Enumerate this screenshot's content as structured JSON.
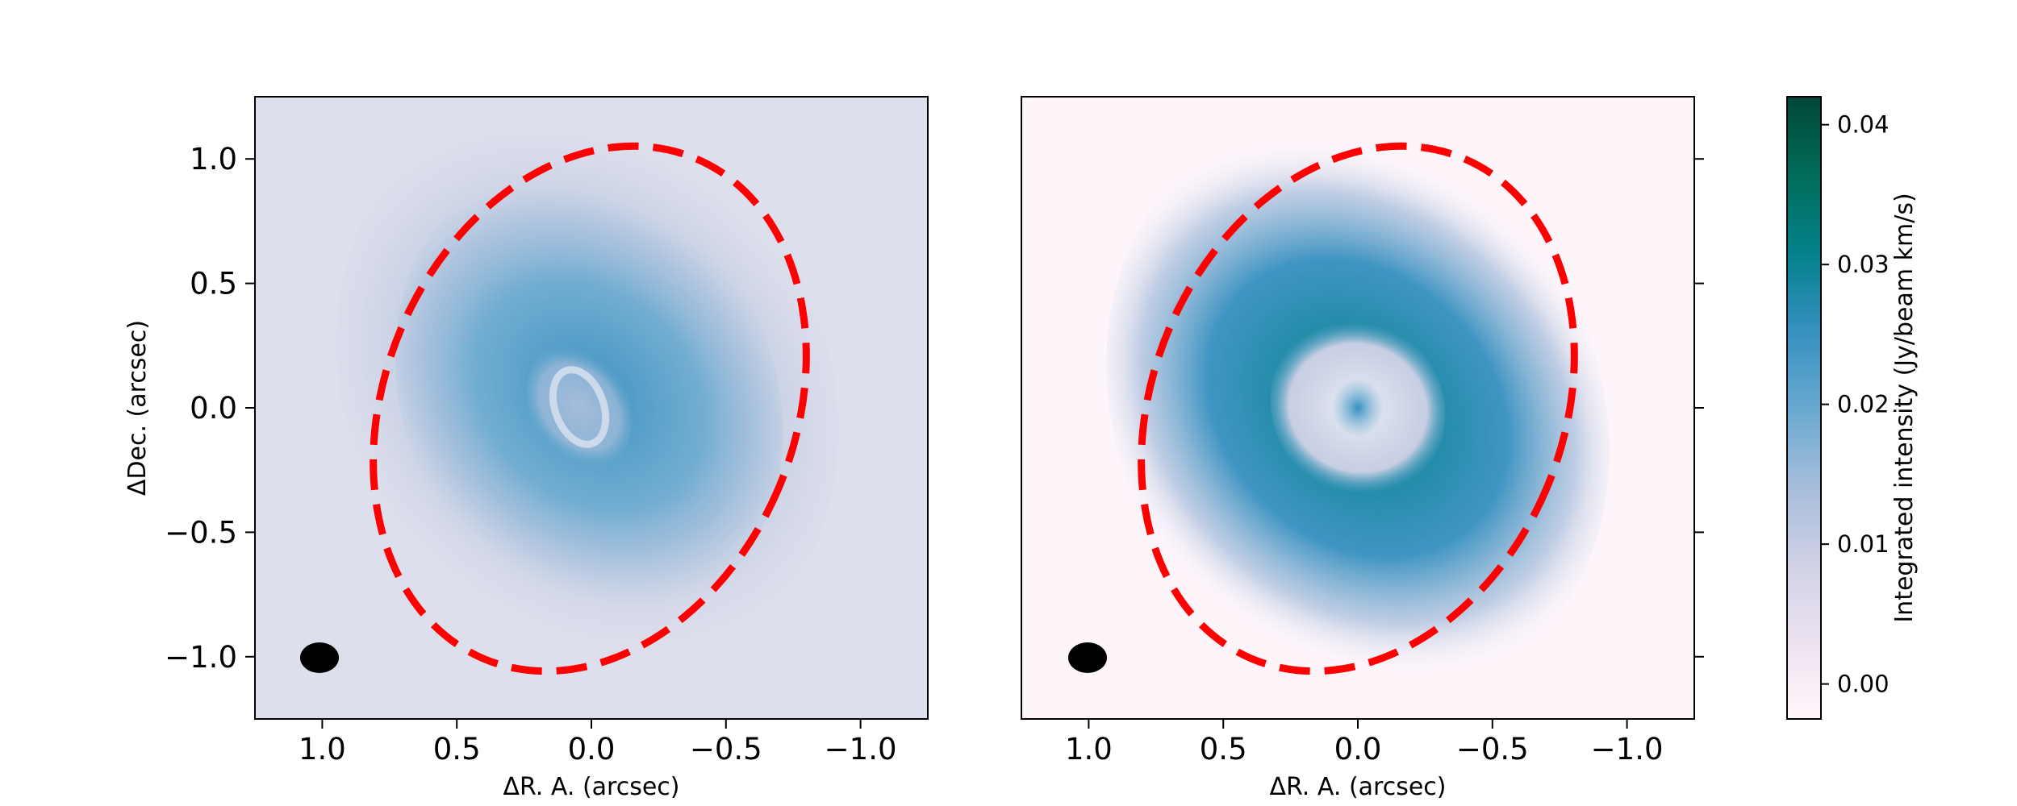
{
  "chart_data": [
    {
      "type": "heatmap",
      "panel": "observed",
      "xlabel": "ΔR. A.  (arcsec)",
      "ylabel": "ΔDec.  (arcsec)",
      "xlim": [
        1.25,
        -1.25
      ],
      "ylim": [
        -1.25,
        1.25
      ],
      "xticks": [
        1.0,
        0.5,
        0.0,
        -0.5,
        -1.0
      ],
      "xtick_labels": [
        "1.0",
        "0.5",
        "0.0",
        "−0.5",
        "−1.0"
      ],
      "yticks": [
        1.0,
        0.5,
        0.0,
        -0.5,
        -1.0
      ],
      "ytick_labels": [
        "1.0",
        "0.5",
        "0.0",
        "−0.5",
        "−1.0"
      ],
      "colormap": "PuBuGn",
      "ellipse": {
        "center": [
          0.0,
          0.0
        ],
        "semi_axes": [
          0.76,
          1.12
        ],
        "rotation_deg": 23,
        "color": "#ff0000",
        "style": "dashed"
      },
      "beam": {
        "center": [
          1.0,
          -1.0
        ],
        "major": 0.15,
        "minor": 0.12,
        "color": "#000000"
      },
      "emission_structure": "ring with bright lobes at Dec ≈ +0.4 and −0.4, central depression with faint inner ring"
    },
    {
      "type": "heatmap",
      "panel": "model",
      "xlabel": "ΔR. A.  (arcsec)",
      "ylabel": "",
      "xlim": [
        1.25,
        -1.25
      ],
      "ylim": [
        -1.25,
        1.25
      ],
      "xticks": [
        1.0,
        0.5,
        0.0,
        -0.5,
        -1.0
      ],
      "xtick_labels": [
        "1.0",
        "0.5",
        "0.0",
        "−0.5",
        "−1.0"
      ],
      "colormap": "PuBuGn",
      "ellipse": {
        "center": [
          0.0,
          0.0
        ],
        "semi_axes": [
          0.76,
          1.12
        ],
        "rotation_deg": 23,
        "color": "#ff0000",
        "style": "dashed"
      },
      "beam": {
        "center": [
          1.0,
          -1.0
        ],
        "major": 0.15,
        "minor": 0.12,
        "color": "#000000"
      },
      "emission_structure": "smooth inclined ring with four bright lobes, central diamond-shaped gap, compact central peak"
    }
  ],
  "colorbar": {
    "label": "Integrated intensity (Jy/beam km/s)",
    "range": [
      -0.0025,
      0.042
    ],
    "ticks": [
      0.0,
      0.01,
      0.02,
      0.03,
      0.04
    ],
    "tick_labels": [
      "0.00",
      "0.01",
      "0.02",
      "0.03",
      "0.04"
    ],
    "colors": [
      "#fff7fb",
      "#ece2f0",
      "#d0d1e6",
      "#a6bddb",
      "#67a9cf",
      "#3690c0",
      "#02818a",
      "#016c59",
      "#014636"
    ]
  }
}
